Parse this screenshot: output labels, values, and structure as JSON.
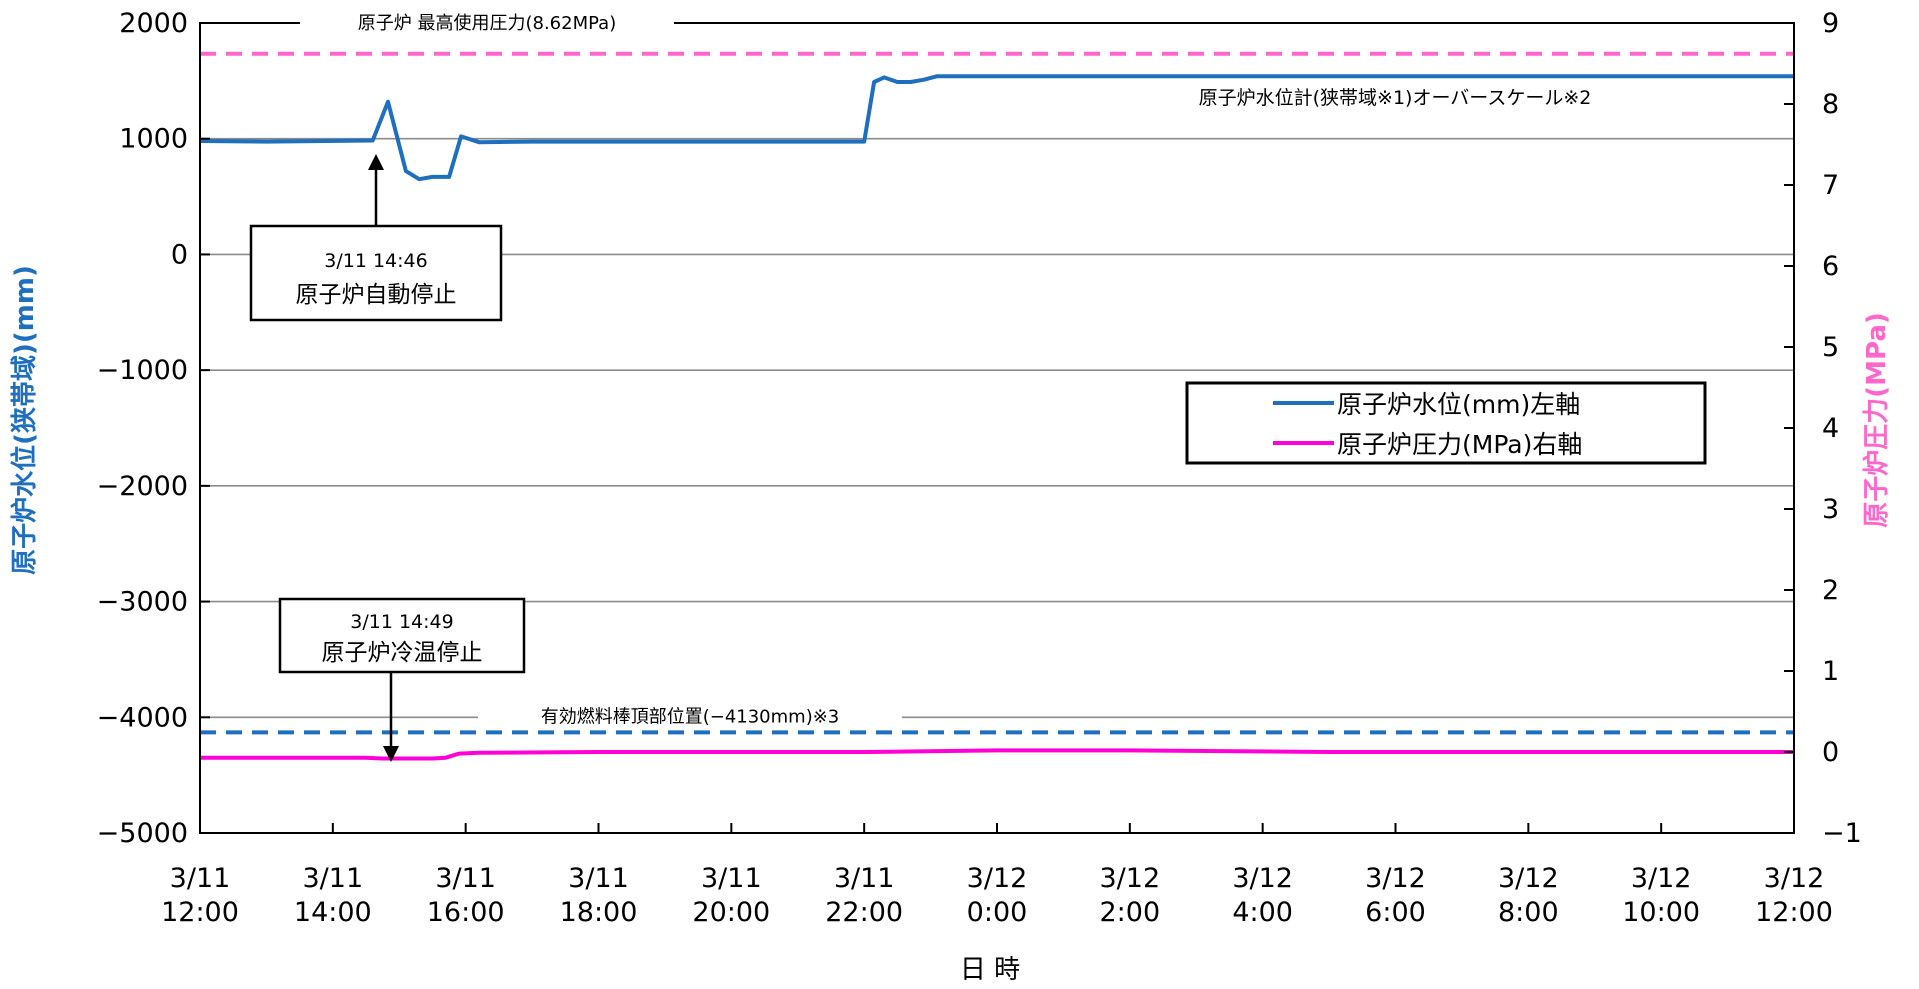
{
  "chart_data": {
    "type": "line",
    "title": "",
    "xlabel": "日 時",
    "ylabel_left": "原子炉水位(狭帯域)(mm)",
    "ylabel_right": "原子炉圧力(MPa)",
    "ylim_left": [
      -5000,
      2000
    ],
    "ylim_right": [
      -1,
      9
    ],
    "yticks_left": [
      "2000",
      "1000",
      "0",
      "−1000",
      "−2000",
      "−3000",
      "−4000",
      "−5000"
    ],
    "yticks_right": [
      "9",
      "8",
      "7",
      "6",
      "5",
      "4",
      "3",
      "2",
      "1",
      "0",
      "−1"
    ],
    "xlim_hours": [
      0,
      24
    ],
    "xticks": [
      {
        "l1": "3/11",
        "l2": "12:00"
      },
      {
        "l1": "3/11",
        "l2": "14:00"
      },
      {
        "l1": "3/11",
        "l2": "16:00"
      },
      {
        "l1": "3/11",
        "l2": "18:00"
      },
      {
        "l1": "3/11",
        "l2": "20:00"
      },
      {
        "l1": "3/11",
        "l2": "22:00"
      },
      {
        "l1": "3/12",
        "l2": "0:00"
      },
      {
        "l1": "3/12",
        "l2": "2:00"
      },
      {
        "l1": "3/12",
        "l2": "4:00"
      },
      {
        "l1": "3/12",
        "l2": "6:00"
      },
      {
        "l1": "3/12",
        "l2": "8:00"
      },
      {
        "l1": "3/12",
        "l2": "10:00"
      },
      {
        "l1": "3/12",
        "l2": "12:00"
      }
    ],
    "grid": true,
    "legend_position": "right-middle",
    "series": [
      {
        "name": "原子炉水位(mm)左軸",
        "axis": "left",
        "color": "#1f6fbf",
        "x": [
          0,
          1.0,
          2.6,
          2.83,
          3.1,
          3.3,
          3.5,
          3.75,
          3.93,
          4.2,
          5.0,
          7.0,
          9.0,
          10.0,
          10.15,
          10.3,
          10.5,
          10.7,
          10.9,
          11.1,
          14.0,
          18.0,
          24.0
        ],
        "y": [
          980,
          975,
          985,
          1320,
          720,
          650,
          670,
          670,
          1020,
          970,
          975,
          975,
          975,
          975,
          1490,
          1530,
          1490,
          1490,
          1510,
          1540,
          1540,
          1540,
          1540
        ]
      },
      {
        "name": "原子炉圧力(MPa)右軸",
        "axis": "right",
        "color": "#ff00d8",
        "x": [
          0,
          2.5,
          2.75,
          3.5,
          3.7,
          3.9,
          4.2,
          6.0,
          10.0,
          12.0,
          14.0,
          17.0,
          20.0,
          24.0
        ],
        "y": [
          -0.07,
          -0.07,
          -0.08,
          -0.08,
          -0.07,
          -0.02,
          -0.01,
          0.0,
          0.0,
          0.02,
          0.02,
          0.0,
          0.0,
          0.0
        ]
      }
    ],
    "reference_lines": [
      {
        "axis": "right",
        "value": 8.62,
        "color": "#ff66cc",
        "label": "原子炉 最高使用圧力(8.62MPa)"
      },
      {
        "axis": "left",
        "value": -4130,
        "color": "#1f6fbf",
        "label": "有効燃料棒頂部位置(−4130mm)※3"
      }
    ],
    "annotations": [
      {
        "line1": "3/11 14:46",
        "line2": "原子炉自動停止"
      },
      {
        "line1": "3/11 14:49",
        "line2": "原子炉冷温停止"
      },
      {
        "text": "原子炉水位計(狭帯域※1)オーバースケール※2"
      }
    ]
  }
}
